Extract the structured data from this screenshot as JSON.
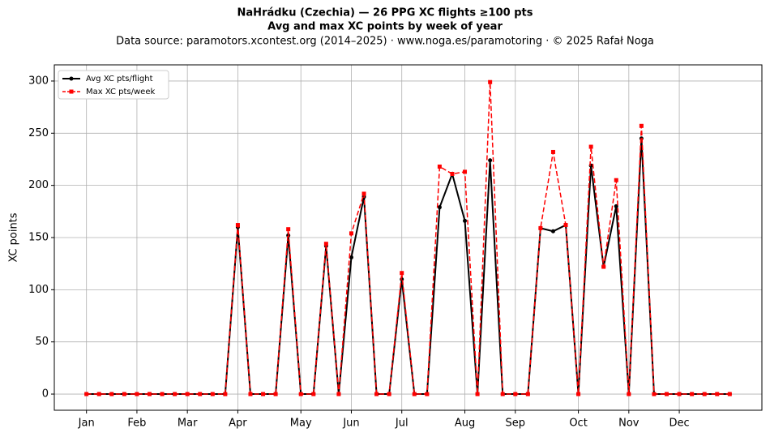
{
  "chart_data": {
    "type": "line",
    "title": "NaHrádku (Czechia)  —  26 PPG XC flights ≥100 pts",
    "subtitle": "Avg and max XC points by week of year",
    "source": "Data source: paramotors.xcontest.org (2014–2025)  ·  www.noga.es/paramotoring  ·  © 2025 Rafał Noga",
    "y_label": "XC points",
    "x": [
      1,
      2,
      3,
      4,
      5,
      6,
      7,
      8,
      9,
      10,
      11,
      12,
      13,
      14,
      15,
      16,
      17,
      18,
      19,
      20,
      21,
      22,
      23,
      24,
      25,
      26,
      27,
      28,
      29,
      30,
      31,
      32,
      33,
      34,
      35,
      36,
      37,
      38,
      39,
      40,
      41,
      42,
      43,
      44,
      45,
      46,
      47,
      48,
      49,
      50,
      51,
      52
    ],
    "series": [
      {
        "name": "Avg XC pts/flight",
        "color": "#000000",
        "dash": false,
        "marker": "circle",
        "values": [
          0,
          0,
          0,
          0,
          0,
          0,
          0,
          0,
          0,
          0,
          0,
          0,
          160,
          0,
          0,
          0,
          152,
          0,
          0,
          142,
          0,
          131,
          189,
          0,
          0,
          110,
          0,
          0,
          179,
          211,
          166,
          0,
          224,
          0,
          0,
          0,
          159,
          156,
          162,
          0,
          219,
          122,
          180,
          0,
          245,
          0,
          0,
          0,
          0,
          0,
          0,
          0
        ]
      },
      {
        "name": "Max XC pts/week",
        "color": "#ff0000",
        "dash": true,
        "marker": "square",
        "values": [
          0,
          0,
          0,
          0,
          0,
          0,
          0,
          0,
          0,
          0,
          0,
          0,
          162,
          0,
          0,
          0,
          158,
          0,
          0,
          144,
          0,
          154,
          192,
          0,
          0,
          116,
          0,
          0,
          218,
          211,
          213,
          0,
          299,
          0,
          0,
          0,
          159,
          232,
          162,
          0,
          237,
          122,
          205,
          0,
          257,
          0,
          0,
          0,
          0,
          0,
          0,
          0
        ]
      }
    ],
    "xlim": [
      -1.55,
      54.55
    ],
    "xticks": [
      {
        "value": 1,
        "label": "Jan"
      },
      {
        "value": 5,
        "label": "Feb"
      },
      {
        "value": 9,
        "label": "Mar"
      },
      {
        "value": 13,
        "label": "Apr"
      },
      {
        "value": 18,
        "label": "May"
      },
      {
        "value": 22,
        "label": "Jun"
      },
      {
        "value": 26,
        "label": "Jul"
      },
      {
        "value": 31,
        "label": "Aug"
      },
      {
        "value": 35,
        "label": "Sep"
      },
      {
        "value": 40,
        "label": "Oct"
      },
      {
        "value": 44,
        "label": "Nov"
      },
      {
        "value": 48,
        "label": "Dec"
      }
    ],
    "ylim": [
      -15.5,
      315.5
    ],
    "yticks": [
      0,
      50,
      100,
      150,
      200,
      250,
      300
    ],
    "grid": true,
    "legend": "upper-left"
  }
}
